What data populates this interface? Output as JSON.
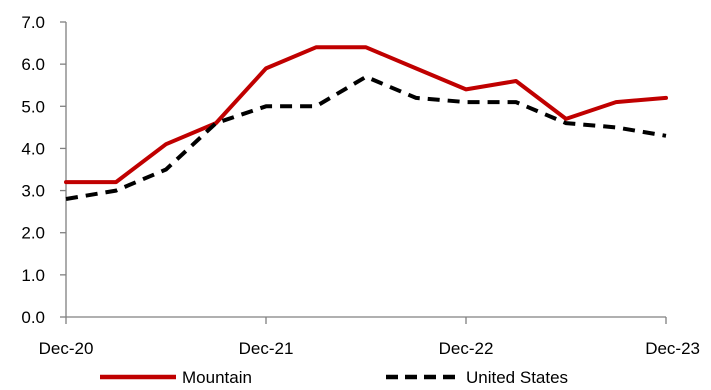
{
  "chart_data": {
    "type": "line",
    "x": [
      "Dec-20",
      "Mar-21",
      "Jun-21",
      "Sep-21",
      "Dec-21",
      "Mar-22",
      "Jun-22",
      "Sep-22",
      "Dec-22",
      "Mar-23",
      "Jun-23",
      "Sep-23",
      "Dec-23"
    ],
    "x_tick_labels": [
      "Dec-20",
      "Dec-21",
      "Dec-22",
      "Dec-23"
    ],
    "y_tick_labels": [
      "0.0",
      "1.0",
      "2.0",
      "3.0",
      "4.0",
      "5.0",
      "6.0",
      "7.0"
    ],
    "ylim": [
      0,
      7
    ],
    "grid": false,
    "legend_position": "bottom",
    "series": [
      {
        "name": "Mountain",
        "color": "#C00000",
        "style": "solid",
        "values": [
          3.2,
          3.2,
          4.1,
          4.6,
          5.9,
          6.4,
          6.4,
          5.9,
          5.4,
          5.6,
          4.7,
          5.1,
          5.2
        ]
      },
      {
        "name": "United States",
        "color": "#000000",
        "style": "dashed",
        "values": [
          2.8,
          3.0,
          3.5,
          4.6,
          5.0,
          5.0,
          5.7,
          5.2,
          5.1,
          5.1,
          4.6,
          4.5,
          4.3
        ]
      }
    ]
  }
}
